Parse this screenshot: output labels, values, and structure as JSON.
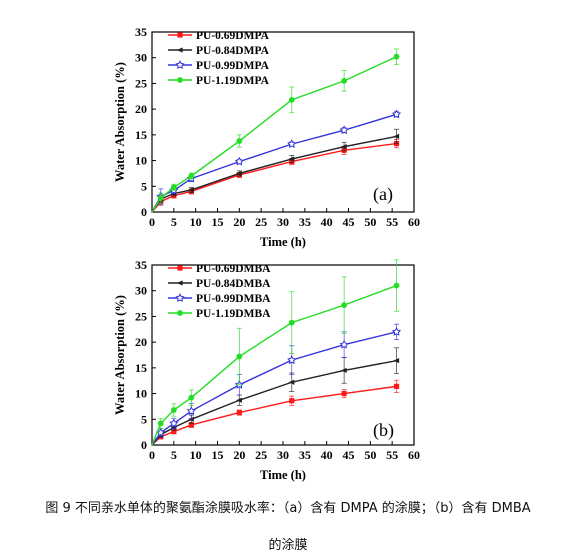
{
  "caption": {
    "line1": "图 9 不同亲水单体的聚氨酯涂膜吸水率：（a）含有 DMPA 的涂膜；（b）含有 DMBA",
    "line2": "的涂膜"
  },
  "chart_data": [
    {
      "type": "line",
      "panel_label": "(a)",
      "xlabel": "Time (h)",
      "ylabel": "Water Absorption (%)",
      "xlim": [
        0,
        60
      ],
      "ylim": [
        0,
        35
      ],
      "xticks": [
        0,
        5,
        10,
        15,
        20,
        25,
        30,
        35,
        40,
        45,
        50,
        55,
        60
      ],
      "yticks": [
        0,
        5,
        10,
        15,
        20,
        25,
        30,
        35
      ],
      "legend_position": "top-left",
      "x": [
        0,
        2,
        5,
        9,
        20,
        32,
        44,
        56
      ],
      "series": [
        {
          "name": "PU-0.69DMPA",
          "color": "#ff1a1a",
          "marker": "square",
          "values": [
            0,
            2.0,
            3.2,
            4.0,
            7.2,
            9.8,
            12.0,
            13.3
          ],
          "errors": [
            0,
            0.7,
            0.5,
            0.5,
            0.5,
            0.6,
            0.8,
            0.8
          ]
        },
        {
          "name": "PU-0.84DMPA",
          "color": "#222222",
          "marker": "left-triangle",
          "values": [
            0,
            2.5,
            3.6,
            4.3,
            7.5,
            10.3,
            12.7,
            14.7
          ],
          "errors": [
            0,
            0.6,
            0.5,
            0.5,
            0.5,
            0.7,
            0.8,
            1.4
          ]
        },
        {
          "name": "PU-0.99DMPA",
          "color": "#3333dd",
          "marker": "open-star",
          "values": [
            0,
            3.0,
            4.2,
            6.5,
            9.8,
            13.2,
            15.9,
            19.0
          ],
          "errors": [
            0,
            1.5,
            0.6,
            0.6,
            0.4,
            0.4,
            0.5,
            0.5
          ]
        },
        {
          "name": "PU-1.19DMPA",
          "color": "#22dd22",
          "marker": "circle",
          "values": [
            0,
            2.7,
            4.8,
            7.0,
            13.8,
            21.8,
            25.5,
            30.2
          ],
          "errors": [
            0,
            1.0,
            0.6,
            0.6,
            1.2,
            2.5,
            2.0,
            1.5
          ]
        }
      ]
    },
    {
      "type": "line",
      "panel_label": "(b)",
      "xlabel": "Time (h)",
      "ylabel": "Water Absorption (%)",
      "xlim": [
        0,
        60
      ],
      "ylim": [
        0,
        35
      ],
      "xticks": [
        0,
        5,
        10,
        15,
        20,
        25,
        30,
        35,
        40,
        45,
        50,
        55,
        60
      ],
      "yticks": [
        0,
        5,
        10,
        15,
        20,
        25,
        30,
        35
      ],
      "legend_position": "top-left",
      "x": [
        0,
        2,
        5,
        9,
        20,
        32,
        44,
        56
      ],
      "series": [
        {
          "name": "PU-0.69DMBA",
          "color": "#ff1a1a",
          "marker": "square",
          "values": [
            0,
            1.6,
            2.6,
            3.9,
            6.3,
            8.6,
            10.0,
            11.4
          ],
          "errors": [
            0,
            0.4,
            0.4,
            0.5,
            0.5,
            0.9,
            0.8,
            1.2
          ]
        },
        {
          "name": "PU-0.84DMBA",
          "color": "#222222",
          "marker": "left-triangle",
          "values": [
            0,
            2.0,
            3.4,
            5.0,
            8.7,
            12.2,
            14.5,
            16.4
          ],
          "errors": [
            0,
            0.5,
            0.6,
            0.8,
            1.0,
            1.8,
            2.5,
            2.5
          ]
        },
        {
          "name": "PU-0.99DMBA",
          "color": "#3333dd",
          "marker": "open-star",
          "values": [
            0,
            2.4,
            4.2,
            6.6,
            11.7,
            16.5,
            19.5,
            22.0
          ],
          "errors": [
            0,
            0.8,
            1.0,
            1.5,
            2.0,
            2.8,
            2.5,
            1.5
          ]
        },
        {
          "name": "PU-1.19DMBA",
          "color": "#22dd22",
          "marker": "circle",
          "values": [
            0,
            4.2,
            6.8,
            9.2,
            17.2,
            23.8,
            27.2,
            31.0
          ],
          "errors": [
            0,
            1.0,
            1.2,
            1.5,
            5.5,
            6.0,
            5.5,
            5.0
          ]
        }
      ]
    }
  ]
}
